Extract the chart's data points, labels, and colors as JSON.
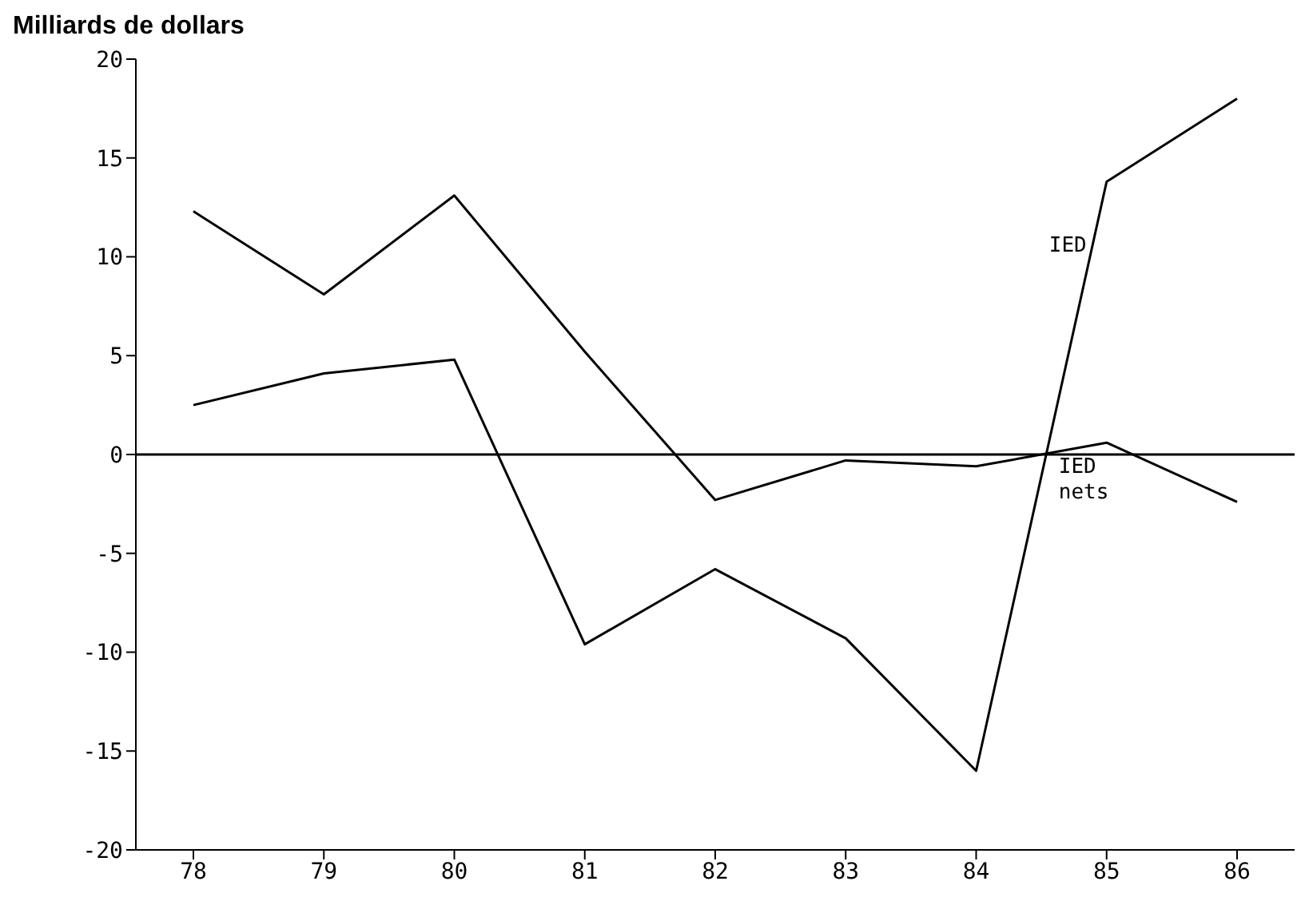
{
  "chart_data": {
    "type": "line",
    "ylabel": "Milliards de dollars",
    "categories": [
      "78",
      "79",
      "80",
      "81",
      "82",
      "83",
      "84",
      "85",
      "86"
    ],
    "series": [
      {
        "name": "IED",
        "color": "#000000",
        "values": [
          2.5,
          4.1,
          4.8,
          -9.6,
          -5.8,
          -9.3,
          -16,
          13.8,
          18
        ]
      },
      {
        "name": "IED nets",
        "color": "#000000",
        "values": [
          12.3,
          8.1,
          13.1,
          5.2,
          -2.3,
          -0.3,
          -0.6,
          0.6,
          -2.4
        ]
      }
    ],
    "ylim": [
      -20,
      20
    ],
    "yticks": [
      -20,
      -15,
      -10,
      -5,
      0,
      5,
      10,
      15,
      20
    ],
    "ref_lines": [
      {
        "axis": "y",
        "value": 0,
        "color": "#000000"
      }
    ],
    "grid": false,
    "legend": false,
    "marker": "none",
    "line_style": "solid"
  }
}
